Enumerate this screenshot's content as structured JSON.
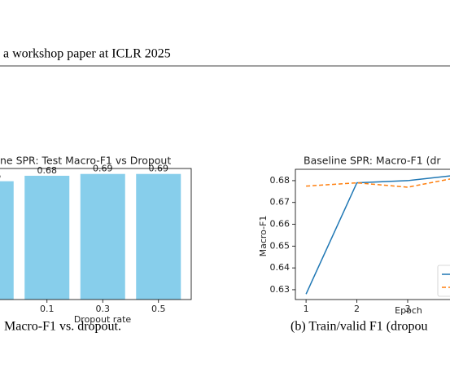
{
  "header": "a workshop paper at ICLR 2025",
  "chart_data": [
    {
      "type": "bar",
      "title": "ne SPR: Test Macro-F1 vs Dropout",
      "categories": [
        null,
        "0.1",
        "0.3",
        "0.5"
      ],
      "values": [
        0.65,
        0.68,
        0.69,
        0.69
      ],
      "color": "#87ceeb",
      "x_label": "Dropout rate",
      "ylim": [
        0,
        0.72
      ]
    },
    {
      "type": "line",
      "title": "Baseline SPR: Macro-F1 (dr",
      "x": [
        1,
        2,
        3,
        4
      ],
      "series": [
        {
          "color": "#1f77b4",
          "linestyle": "solid",
          "values": [
            0.628,
            0.679,
            0.68,
            0.6826
          ]
        },
        {
          "color": "#ff7f0e",
          "linestyle": "dashed",
          "values": [
            0.6775,
            0.679,
            0.677,
            0.6815
          ]
        }
      ],
      "x_label": "Epoch",
      "y_label": "Macro-F1",
      "xlim": [
        0.79,
        5.21
      ],
      "ylim": [
        0.6255,
        0.6852
      ],
      "xticks": [
        1,
        2,
        3
      ],
      "yticks": [
        0.63,
        0.64,
        0.65,
        0.66,
        0.67,
        0.68
      ]
    }
  ],
  "captions": [
    "Macro-F1 vs. dropout.",
    "(b) Train/valid F1 (dropou"
  ]
}
